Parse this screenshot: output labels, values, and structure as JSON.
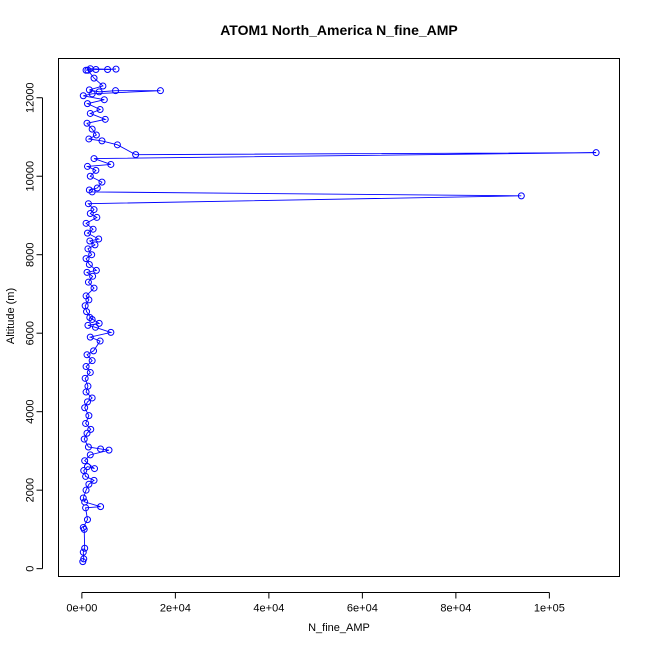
{
  "chart_data": {
    "type": "line",
    "title": "ATOM1 North_America N_fine_AMP",
    "xlabel": "N_fine_AMP",
    "ylabel": "Altitude (m)",
    "xlim": [
      -5000,
      115000
    ],
    "ylim": [
      -200,
      13000
    ],
    "x_ticks": [
      0,
      20000,
      40000,
      60000,
      80000,
      100000
    ],
    "x_tick_labels": [
      "0e+00",
      "2e+04",
      "4e+04",
      "6e+04",
      "8e+04",
      "1e+05"
    ],
    "y_ticks": [
      0,
      2000,
      4000,
      6000,
      8000,
      10000,
      12000
    ],
    "y_tick_labels": [
      "0",
      "2000",
      "4000",
      "6000",
      "8000",
      "10000",
      "12000"
    ],
    "series_color": "#0000ff",
    "markers": "open-circle",
    "series": [
      {
        "points": [
          [
            200,
            180
          ],
          [
            400,
            250
          ],
          [
            300,
            420
          ],
          [
            600,
            520
          ],
          [
            500,
            1000
          ],
          [
            300,
            1050
          ],
          [
            1200,
            1250
          ],
          [
            800,
            1550
          ],
          [
            4000,
            1580
          ],
          [
            600,
            1700
          ],
          [
            300,
            1800
          ],
          [
            900,
            2000
          ],
          [
            1500,
            2150
          ],
          [
            2600,
            2250
          ],
          [
            800,
            2350
          ],
          [
            400,
            2500
          ],
          [
            1200,
            2600
          ],
          [
            2700,
            2550
          ],
          [
            600,
            2750
          ],
          [
            1800,
            2900
          ],
          [
            5800,
            3020
          ],
          [
            4000,
            3050
          ],
          [
            1400,
            3100
          ],
          [
            500,
            3300
          ],
          [
            1100,
            3450
          ],
          [
            1900,
            3550
          ],
          [
            800,
            3700
          ],
          [
            1500,
            3900
          ],
          [
            600,
            4100
          ],
          [
            1200,
            4250
          ],
          [
            2200,
            4350
          ],
          [
            900,
            4500
          ],
          [
            1300,
            4650
          ],
          [
            700,
            4850
          ],
          [
            1800,
            5000
          ],
          [
            900,
            5150
          ],
          [
            2200,
            5300
          ],
          [
            1100,
            5450
          ],
          [
            2500,
            5550
          ],
          [
            3900,
            5800
          ],
          [
            1800,
            5900
          ],
          [
            6200,
            6020
          ],
          [
            2900,
            6150
          ],
          [
            1300,
            6200
          ],
          [
            3700,
            6250
          ],
          [
            1700,
            6400
          ],
          [
            2200,
            6350
          ],
          [
            1000,
            6550
          ],
          [
            700,
            6700
          ],
          [
            1500,
            6850
          ],
          [
            900,
            6950
          ],
          [
            2600,
            7150
          ],
          [
            1400,
            7300
          ],
          [
            2300,
            7450
          ],
          [
            1100,
            7550
          ],
          [
            3100,
            7600
          ],
          [
            1600,
            7750
          ],
          [
            900,
            7900
          ],
          [
            2100,
            8000
          ],
          [
            1300,
            8150
          ],
          [
            2800,
            8250
          ],
          [
            1700,
            8350
          ],
          [
            3600,
            8400
          ],
          [
            1200,
            8550
          ],
          [
            2400,
            8650
          ],
          [
            900,
            8800
          ],
          [
            3200,
            8950
          ],
          [
            1800,
            9050
          ],
          [
            2600,
            9150
          ],
          [
            1400,
            9300
          ],
          [
            94000,
            9500
          ],
          [
            2200,
            9600
          ],
          [
            1600,
            9650
          ],
          [
            3300,
            9700
          ],
          [
            4300,
            9850
          ],
          [
            1800,
            10000
          ],
          [
            3000,
            10150
          ],
          [
            1200,
            10250
          ],
          [
            6200,
            10300
          ],
          [
            2600,
            10450
          ],
          [
            110000,
            10600
          ],
          [
            11500,
            10550
          ],
          [
            7600,
            10800
          ],
          [
            4300,
            10900
          ],
          [
            1500,
            10950
          ],
          [
            3100,
            11050
          ],
          [
            2200,
            11200
          ],
          [
            1100,
            11350
          ],
          [
            5000,
            11450
          ],
          [
            1800,
            11600
          ],
          [
            3900,
            11700
          ],
          [
            1200,
            11850
          ],
          [
            4800,
            11950
          ],
          [
            300,
            12050
          ],
          [
            2200,
            12100
          ],
          [
            16800,
            12180
          ],
          [
            7200,
            12180
          ],
          [
            3700,
            12150
          ],
          [
            1600,
            12200
          ],
          [
            4500,
            12300
          ],
          [
            2600,
            12500
          ],
          [
            1300,
            12700
          ],
          [
            3000,
            12720
          ],
          [
            7300,
            12730
          ],
          [
            5500,
            12720
          ],
          [
            1800,
            12740
          ],
          [
            900,
            12700
          ]
        ]
      }
    ]
  }
}
